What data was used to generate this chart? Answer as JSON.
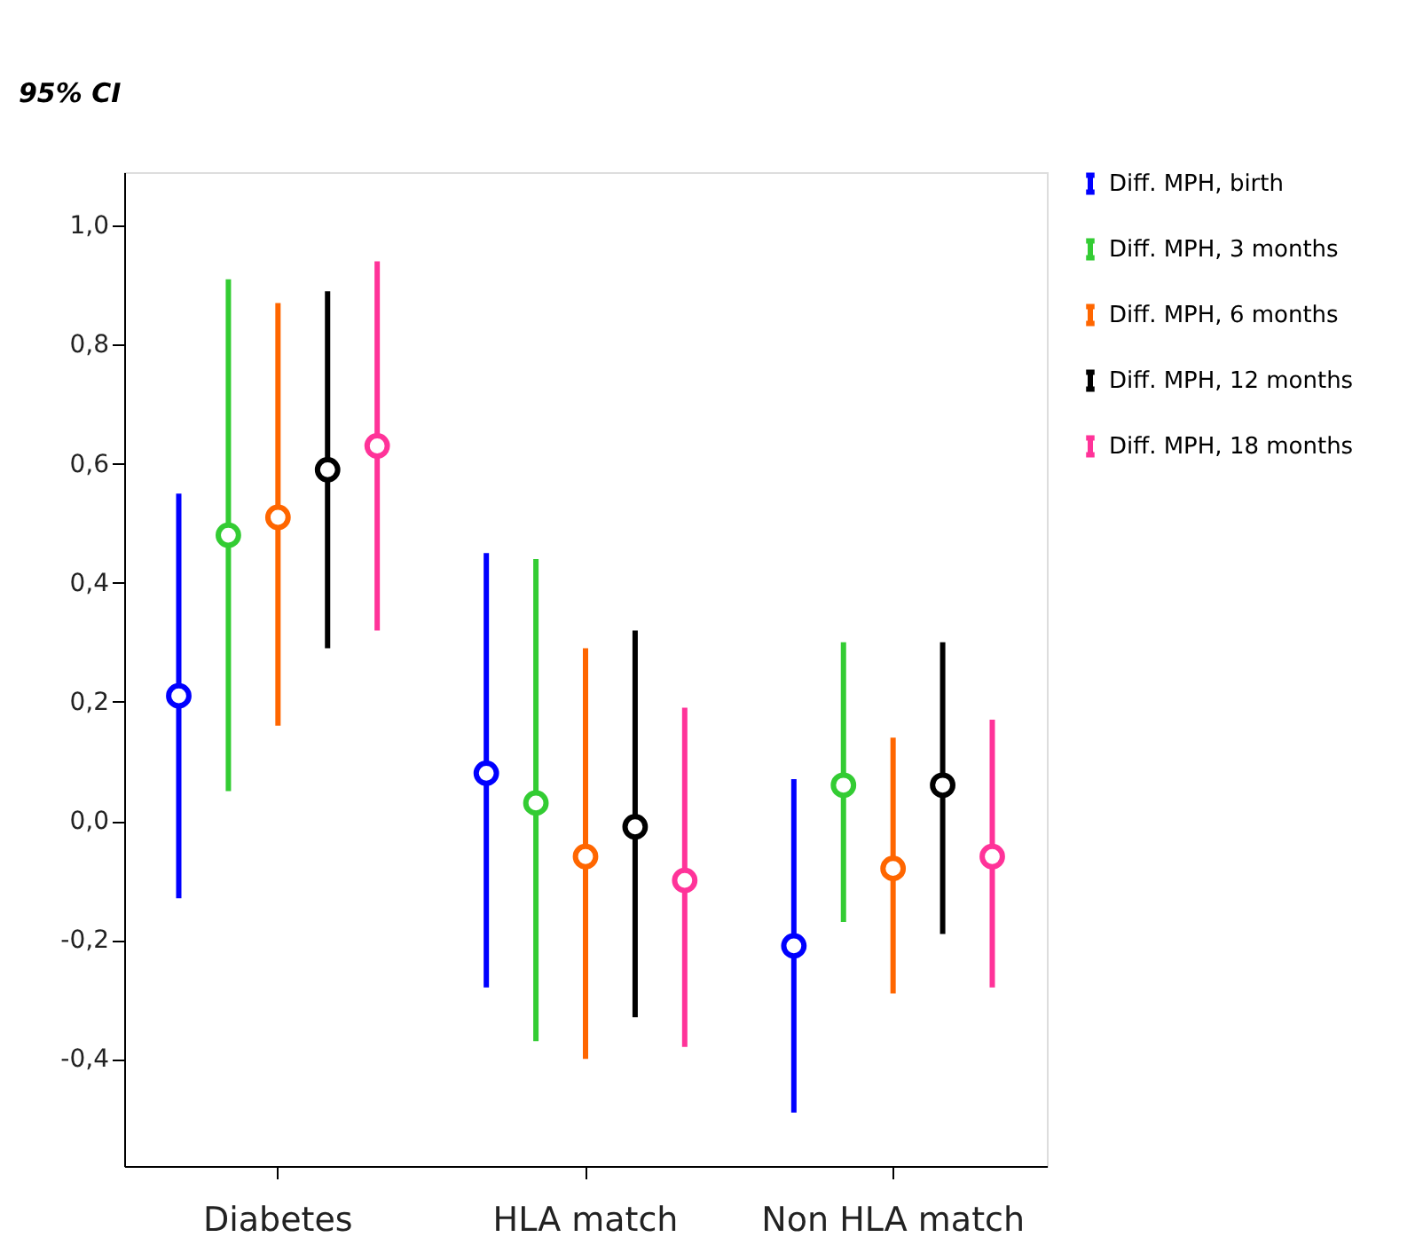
{
  "chart_data": {
    "type": "scatter",
    "ylabel": "95% CI",
    "categories": [
      "Diabetes",
      "HLA match",
      "Non HLA match"
    ],
    "series": [
      {
        "name": "Diff. MPH, birth",
        "color": "#0000ff",
        "values": [
          0.21,
          0.08,
          -0.21
        ],
        "errors": [
          [
            -0.13,
            0.55
          ],
          [
            -0.28,
            0.45
          ],
          [
            -0.49,
            0.07
          ]
        ]
      },
      {
        "name": "Diff. MPH, 3 months",
        "color": "#33cc33",
        "values": [
          0.48,
          0.03,
          0.06
        ],
        "errors": [
          [
            0.05,
            0.91
          ],
          [
            -0.37,
            0.44
          ],
          [
            -0.17,
            0.3
          ]
        ]
      },
      {
        "name": "Diff. MPH, 6 months",
        "color": "#ff6600",
        "values": [
          0.51,
          -0.06,
          -0.08
        ],
        "errors": [
          [
            0.16,
            0.87
          ],
          [
            -0.4,
            0.29
          ],
          [
            -0.29,
            0.14
          ]
        ]
      },
      {
        "name": "Diff. MPH, 12 months",
        "color": "#000000",
        "values": [
          0.59,
          -0.01,
          0.06
        ],
        "errors": [
          [
            0.29,
            0.89
          ],
          [
            -0.33,
            0.32
          ],
          [
            -0.19,
            0.3
          ]
        ]
      },
      {
        "name": "Diff. MPH, 18 months",
        "color": "#ff3399",
        "values": [
          0.63,
          -0.1,
          -0.06
        ],
        "errors": [
          [
            0.32,
            0.94
          ],
          [
            -0.38,
            0.19
          ],
          [
            -0.28,
            0.17
          ]
        ]
      }
    ],
    "ylim": [
      -0.58,
      1.09
    ],
    "yticks": [
      {
        "value": -0.4,
        "label": "-0,4"
      },
      {
        "value": -0.2,
        "label": "-0,2"
      },
      {
        "value": 0,
        "label": "0,0"
      },
      {
        "value": 0.2,
        "label": "0,2"
      },
      {
        "value": 0.4,
        "label": "0,4"
      },
      {
        "value": 0.6,
        "label": "0,6"
      },
      {
        "value": 0.8,
        "label": "0,8"
      },
      {
        "value": 1.0,
        "label": "1,0"
      }
    ],
    "marker": "circle",
    "grid": false,
    "legend": "top right"
  }
}
